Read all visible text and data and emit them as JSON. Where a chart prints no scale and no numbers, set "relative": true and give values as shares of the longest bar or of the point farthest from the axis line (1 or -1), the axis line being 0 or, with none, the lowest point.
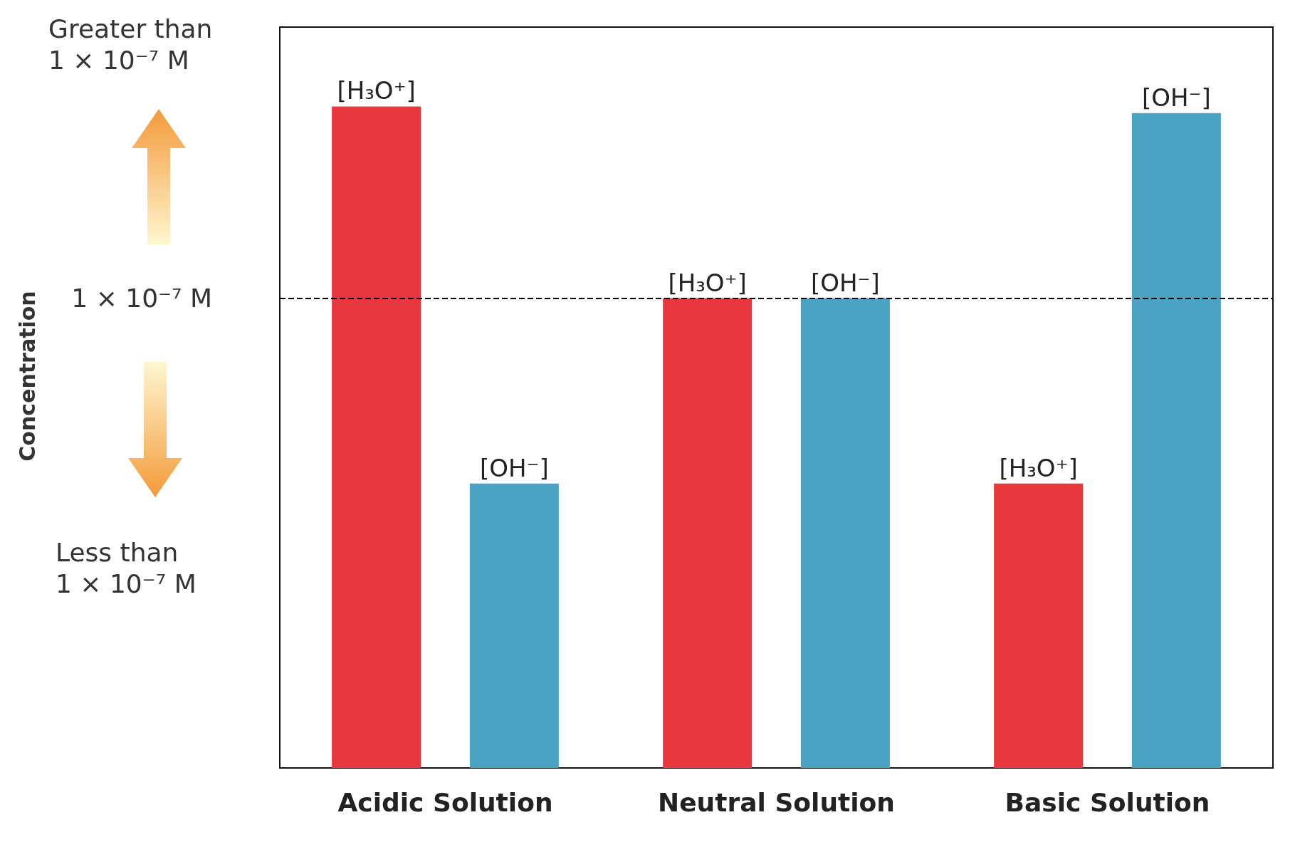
{
  "chart_data": {
    "type": "bar",
    "relative": true,
    "categories": [
      "Acidic Solution",
      "Neutral Solution",
      "Basic Solution"
    ],
    "series": [
      {
        "name": "[H₃O⁺]",
        "color": "#e8383d",
        "values": [
          1,
          0.71,
          0.43
        ]
      },
      {
        "name": "[OH⁻]",
        "color": "#4aa3c2",
        "values": [
          0.43,
          0.71,
          0.99
        ]
      }
    ],
    "ref_lines": [
      {
        "axis": "y",
        "value": 0.71,
        "label": "1 × 10⁻⁷ M",
        "color": "#000000",
        "line_style": "dashed"
      }
    ],
    "annotations": [
      "Concentration",
      "Greater than 1 × 10⁻⁷ M",
      "Less than 1 × 10⁻⁷ M"
    ],
    "legend": false,
    "grid": false
  }
}
